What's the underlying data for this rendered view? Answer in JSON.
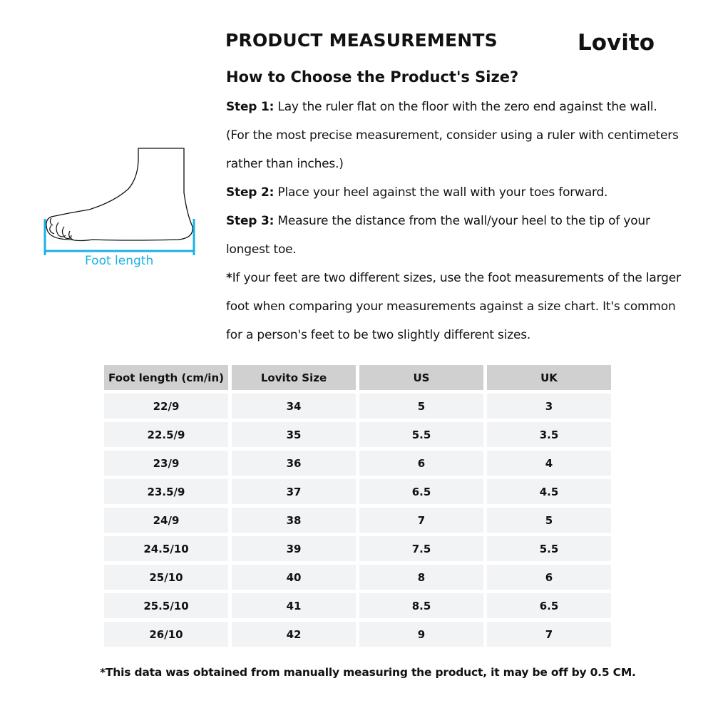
{
  "header": {
    "title": "PRODUCT MEASUREMENTS",
    "logo": "Lovito"
  },
  "guide": {
    "heading": "How to Choose the Product's Size?",
    "step1_label": "Step 1:",
    "step1_text": " Lay the ruler flat on the floor with the zero end against the wall. (For the most precise measurement, consider using a ruler with centimeters rather than inches.)",
    "step2_label": "Step 2:",
    "step2_text": " Place your heel against the wall with your toes forward.",
    "step3_label": "Step 3:",
    "step3_text": " Measure the distance from the wall/your heel to the tip of your longest toe.",
    "note_mark": "*",
    "note_text": "If your feet are two different sizes, use the foot measurements of the larger foot when comparing your measurements against a size chart. It's common for a person's feet to be two slightly different sizes."
  },
  "illustration": {
    "label": "Foot length",
    "accent": "#1ab0e8"
  },
  "table": {
    "headers": [
      "Foot length (cm/in)",
      "Lovito Size",
      "US",
      "UK"
    ],
    "rows": [
      [
        "22/9",
        "34",
        "5",
        "3"
      ],
      [
        "22.5/9",
        "35",
        "5.5",
        "3.5"
      ],
      [
        "23/9",
        "36",
        "6",
        "4"
      ],
      [
        "23.5/9",
        "37",
        "6.5",
        "4.5"
      ],
      [
        "24/9",
        "38",
        "7",
        "5"
      ],
      [
        "24.5/10",
        "39",
        "7.5",
        "5.5"
      ],
      [
        "25/10",
        "40",
        "8",
        "6"
      ],
      [
        "25.5/10",
        "41",
        "8.5",
        "6.5"
      ],
      [
        "26/10",
        "42",
        "9",
        "7"
      ]
    ]
  },
  "footnote": "*This data was obtained from manually measuring the product, it may be off by 0.5 CM."
}
